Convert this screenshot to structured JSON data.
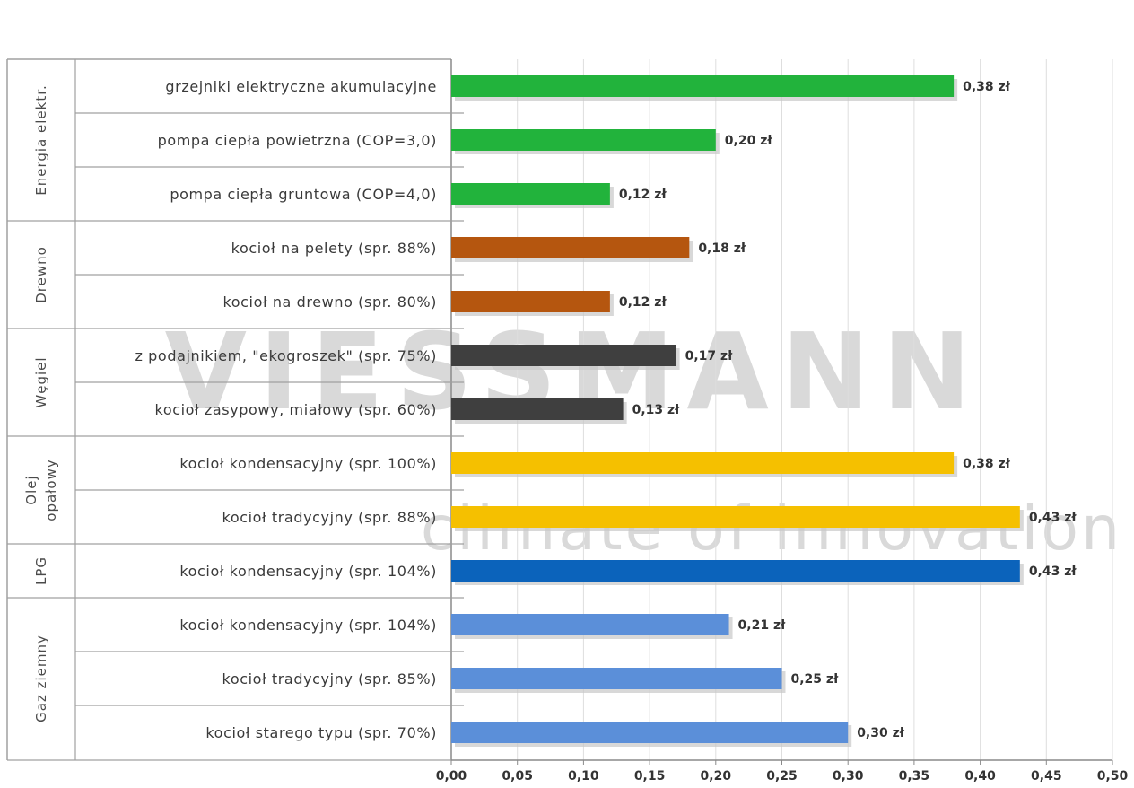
{
  "chart_data": {
    "type": "bar",
    "orientation": "horizontal",
    "title": "",
    "xlabel": "",
    "ylabel": "",
    "xlim": [
      0,
      0.5
    ],
    "x_ticks": [
      "0,00",
      "0,05",
      "0,10",
      "0,15",
      "0,20",
      "0,25",
      "0,30",
      "0,35",
      "0,40",
      "0,45",
      "0,50"
    ],
    "grid": "vertical",
    "watermark": [
      "VIESSMANN",
      "climate of innovation"
    ],
    "groups": [
      {
        "name": "Energia elektr.",
        "color": "#22b33c",
        "items": [
          {
            "label": "grzejniki elektryczne akumulacyjne",
            "value": 0.38,
            "value_label": "0,38 zł"
          },
          {
            "label": "pompa ciepła powietrzna (COP=3,0)",
            "value": 0.2,
            "value_label": "0,20 zł"
          },
          {
            "label": "pompa ciepła gruntowa (COP=4,0)",
            "value": 0.12,
            "value_label": "0,12 zł"
          }
        ]
      },
      {
        "name": "Drewno",
        "color": "#b5560f",
        "items": [
          {
            "label": "kocioł na pelety (spr. 88%)",
            "value": 0.18,
            "value_label": "0,18 zł"
          },
          {
            "label": "kocioł na drewno (spr. 80%)",
            "value": 0.12,
            "value_label": "0,12 zł"
          }
        ]
      },
      {
        "name": "Węgiel",
        "color": "#3f3f3f",
        "items": [
          {
            "label": "z podajnikiem, \"ekogroszek\" (spr. 75%)",
            "value": 0.17,
            "value_label": "0,17 zł"
          },
          {
            "label": "kocioł zasypowy, miałowy (spr. 60%)",
            "value": 0.13,
            "value_label": "0,13 zł"
          }
        ]
      },
      {
        "name": "Olej opałowy",
        "name_lines": [
          "Olej",
          "opałowy"
        ],
        "color": "#f5c000",
        "items": [
          {
            "label": "kocioł kondensacyjny (spr. 100%)",
            "value": 0.38,
            "value_label": "0,38 zł"
          },
          {
            "label": "kocioł tradycyjny (spr. 88%)",
            "value": 0.43,
            "value_label": "0,43 zł"
          }
        ]
      },
      {
        "name": "LPG",
        "color": "#0b63bb",
        "items": [
          {
            "label": "kocioł kondensacyjny (spr. 104%)",
            "value": 0.43,
            "value_label": "0,43 zł"
          }
        ]
      },
      {
        "name": "Gaz ziemny",
        "color": "#5b8fd9",
        "items": [
          {
            "label": "kocioł kondensacyjny (spr. 104%)",
            "value": 0.21,
            "value_label": "0,21 zł"
          },
          {
            "label": "kocioł tradycyjny (spr. 85%)",
            "value": 0.25,
            "value_label": "0,25 zł"
          },
          {
            "label": "kocioł starego typu (spr. 70%)",
            "value": 0.3,
            "value_label": "0,30 zł"
          }
        ]
      }
    ]
  }
}
